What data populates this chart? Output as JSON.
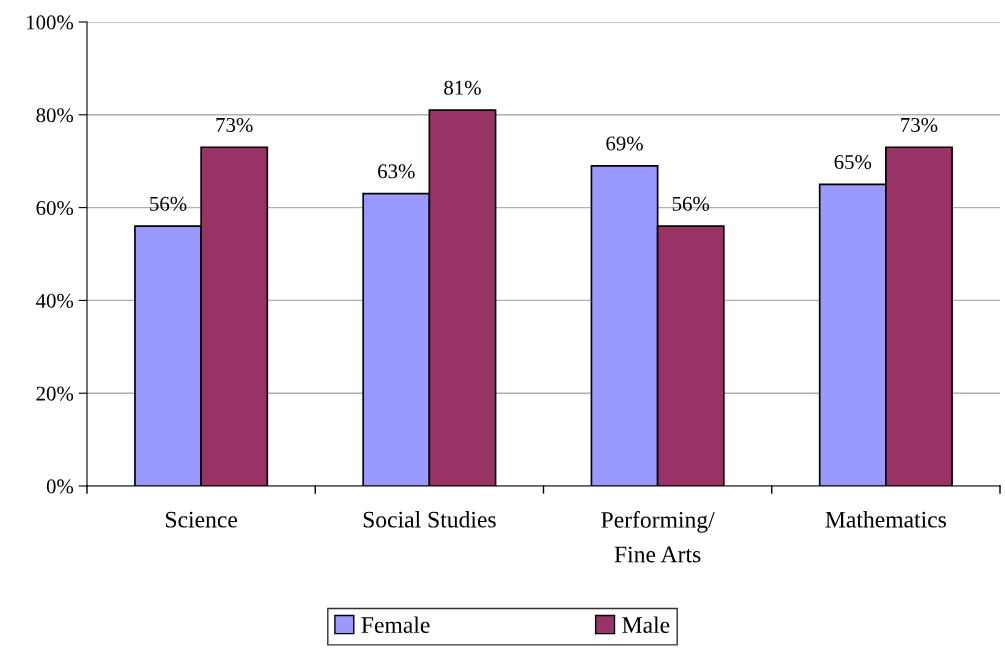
{
  "chart_data": {
    "type": "bar",
    "categories": [
      "Science",
      "Social Studies",
      "Performing/\nFine Arts",
      "Mathematics"
    ],
    "series": [
      {
        "name": "Female",
        "color": "#9999ff",
        "values": [
          56,
          63,
          69,
          65
        ],
        "value_labels": [
          "56%",
          "63%",
          "69%",
          "65%"
        ]
      },
      {
        "name": "Male",
        "color": "#993366",
        "values": [
          73,
          81,
          56,
          73
        ],
        "value_labels": [
          "73%",
          "81%",
          "56%",
          "73%"
        ]
      }
    ],
    "ylim": [
      0,
      100
    ],
    "yticks": [
      {
        "value": 0,
        "label": "0%"
      },
      {
        "value": 20,
        "label": "20%"
      },
      {
        "value": 40,
        "label": "40%"
      },
      {
        "value": 60,
        "label": "60%"
      },
      {
        "value": 80,
        "label": "80%"
      },
      {
        "value": 100,
        "label": "100%"
      }
    ],
    "grid": "y",
    "legend": "bottom"
  }
}
